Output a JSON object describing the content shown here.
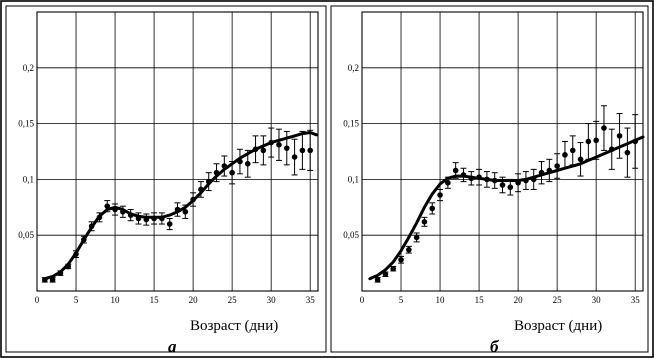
{
  "chart_data": [
    {
      "type": "scatter",
      "panel_label": "а",
      "xlabel": "Возраст (дни)",
      "ylabel": "",
      "xlim": [
        0,
        36
      ],
      "ylim": [
        0,
        0.25
      ],
      "xticks": [
        "0",
        "5",
        "10",
        "15",
        "20",
        "25",
        "30",
        "35"
      ],
      "yticks": [
        "0,05",
        "0,1",
        "0,15",
        "0,2"
      ],
      "grid": true,
      "series": [
        {
          "kind": "points",
          "x": [
            1,
            2,
            3,
            4,
            5,
            6,
            7,
            8,
            9,
            10,
            11,
            12,
            13,
            14,
            15,
            16,
            17,
            18,
            19,
            20,
            21,
            22,
            23,
            24,
            25,
            26,
            27,
            28,
            29,
            30,
            31,
            32,
            33,
            34,
            35
          ],
          "y": [
            0.01,
            0.01,
            0.016,
            0.022,
            0.033,
            0.046,
            0.058,
            0.066,
            0.076,
            0.073,
            0.071,
            0.068,
            0.065,
            0.064,
            0.065,
            0.065,
            0.06,
            0.073,
            0.071,
            0.082,
            0.091,
            0.098,
            0.106,
            0.112,
            0.106,
            0.116,
            0.114,
            0.127,
            0.126,
            0.133,
            0.131,
            0.128,
            0.12,
            0.126,
            0.126
          ],
          "err": [
            0.002,
            0.002,
            0.002,
            0.002,
            0.003,
            0.003,
            0.004,
            0.004,
            0.005,
            0.005,
            0.005,
            0.005,
            0.005,
            0.005,
            0.005,
            0.005,
            0.005,
            0.006,
            0.006,
            0.006,
            0.007,
            0.008,
            0.008,
            0.009,
            0.01,
            0.011,
            0.012,
            0.012,
            0.013,
            0.013,
            0.014,
            0.015,
            0.016,
            0.017,
            0.018
          ]
        },
        {
          "kind": "line",
          "x": [
            1,
            2,
            3,
            4,
            5,
            6,
            7,
            8,
            9,
            10,
            11,
            12,
            13,
            14,
            15,
            16,
            17,
            18,
            19,
            20,
            21,
            22,
            23,
            24,
            25,
            26,
            27,
            28,
            29,
            30,
            31,
            32,
            33,
            34,
            35,
            35.8
          ],
          "y": [
            0.011,
            0.013,
            0.017,
            0.024,
            0.034,
            0.046,
            0.057,
            0.067,
            0.073,
            0.075,
            0.073,
            0.069,
            0.067,
            0.066,
            0.066,
            0.066,
            0.068,
            0.071,
            0.075,
            0.081,
            0.088,
            0.096,
            0.103,
            0.109,
            0.114,
            0.119,
            0.123,
            0.127,
            0.13,
            0.133,
            0.135,
            0.137,
            0.139,
            0.141,
            0.142,
            0.14
          ]
        }
      ]
    },
    {
      "type": "scatter",
      "panel_label": "б",
      "xlabel": "Возраст (дни)",
      "ylabel": "",
      "xlim": [
        0,
        36
      ],
      "ylim": [
        0,
        0.25
      ],
      "xticks": [
        "0",
        "5",
        "10",
        "15",
        "20",
        "25",
        "30",
        "35"
      ],
      "yticks": [
        "0,05",
        "0,1",
        "0,15",
        "0,2"
      ],
      "grid": true,
      "series": [
        {
          "kind": "points",
          "x": [
            2,
            3,
            4,
            5,
            6,
            7,
            8,
            9,
            10,
            11,
            12,
            13,
            14,
            15,
            16,
            17,
            18,
            19,
            20,
            21,
            22,
            23,
            24,
            25,
            26,
            27,
            28,
            29,
            30,
            31,
            32,
            33,
            34,
            35
          ],
          "y": [
            0.01,
            0.015,
            0.02,
            0.028,
            0.037,
            0.048,
            0.062,
            0.074,
            0.086,
            0.097,
            0.108,
            0.104,
            0.101,
            0.102,
            0.1,
            0.099,
            0.095,
            0.093,
            0.097,
            0.099,
            0.1,
            0.106,
            0.108,
            0.112,
            0.122,
            0.126,
            0.118,
            0.134,
            0.135,
            0.146,
            0.127,
            0.139,
            0.124,
            0.134
          ],
          "err": [
            0.002,
            0.002,
            0.002,
            0.003,
            0.003,
            0.004,
            0.004,
            0.005,
            0.005,
            0.005,
            0.007,
            0.006,
            0.006,
            0.007,
            0.007,
            0.007,
            0.007,
            0.007,
            0.008,
            0.008,
            0.009,
            0.01,
            0.01,
            0.011,
            0.012,
            0.013,
            0.015,
            0.016,
            0.017,
            0.02,
            0.018,
            0.02,
            0.022,
            0.024
          ]
        },
        {
          "kind": "line",
          "x": [
            1,
            2,
            3,
            4,
            5,
            6,
            7,
            8,
            9,
            10,
            11,
            12,
            13,
            14,
            15,
            16,
            17,
            18,
            19,
            20,
            21,
            22,
            23,
            24,
            25,
            26,
            27,
            28,
            29,
            30,
            31,
            32,
            33,
            34,
            35,
            36
          ],
          "y": [
            0.011,
            0.014,
            0.019,
            0.026,
            0.036,
            0.048,
            0.061,
            0.075,
            0.087,
            0.096,
            0.101,
            0.103,
            0.103,
            0.102,
            0.101,
            0.1,
            0.099,
            0.099,
            0.099,
            0.099,
            0.1,
            0.102,
            0.104,
            0.106,
            0.108,
            0.11,
            0.112,
            0.114,
            0.117,
            0.12,
            0.123,
            0.126,
            0.129,
            0.132,
            0.135,
            0.138
          ]
        }
      ]
    }
  ]
}
